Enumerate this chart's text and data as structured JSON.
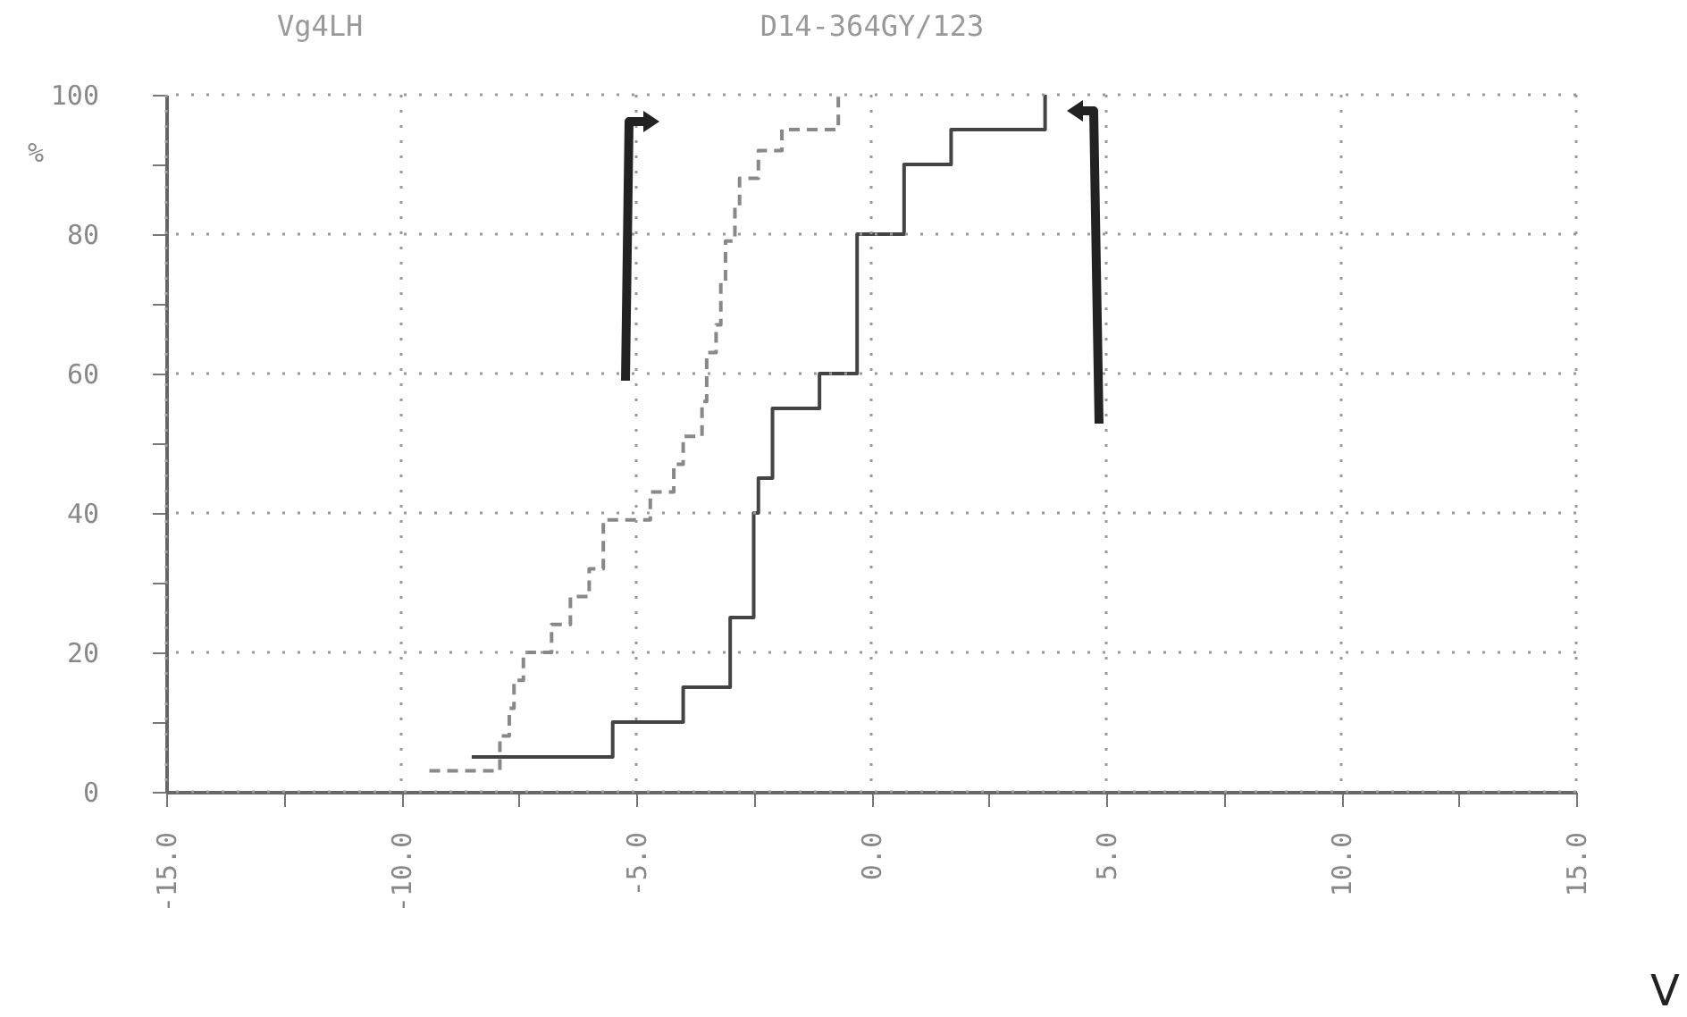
{
  "chart_data": {
    "type": "step",
    "title": "D14-364GY/123",
    "annotations": [
      "Vg4LH"
    ],
    "xlabel": "V",
    "ylabel": "%",
    "xlim": [
      -15,
      15
    ],
    "xticks": [
      {
        "value": -15,
        "label": "-15.0"
      },
      {
        "value": -12.5,
        "label": null
      },
      {
        "value": -10,
        "label": "-10.0"
      },
      {
        "value": -7.5,
        "label": null
      },
      {
        "value": -5,
        "label": "-5.0"
      },
      {
        "value": -2.5,
        "label": null
      },
      {
        "value": 0,
        "label": "0.0"
      },
      {
        "value": 2.5,
        "label": null
      },
      {
        "value": 5,
        "label": "5.0"
      },
      {
        "value": 7.5,
        "label": null
      },
      {
        "value": 10,
        "label": "10.0"
      },
      {
        "value": 12.5,
        "label": null
      },
      {
        "value": 15,
        "label": "15.0"
      }
    ],
    "ylim": [
      0,
      100
    ],
    "yticks": [
      0,
      {
        "value": 10,
        "label": null
      },
      20,
      {
        "value": 30,
        "label": null
      },
      40,
      {
        "value": 50,
        "label": null
      },
      60,
      {
        "value": 70,
        "label": null
      },
      80,
      {
        "value": 90,
        "label": null
      },
      100
    ],
    "grid": true,
    "series": [
      {
        "color": "#444444",
        "line_style": "solid",
        "x": [
          -8.5,
          -5.5,
          -4.0,
          -3.0,
          -2.5,
          -2.4,
          -2.1,
          -1.1,
          -0.3,
          0.7,
          1.7,
          3.7
        ],
        "values": [
          5,
          10,
          15,
          25,
          40,
          45,
          55,
          60,
          80,
          90,
          95,
          100
        ]
      },
      {
        "color": "#888888",
        "line_style": "dashed",
        "x": [
          -9.4,
          -7.9,
          -7.7,
          -7.6,
          -7.4,
          -6.8,
          -6.4,
          -6.0,
          -5.7,
          -4.7,
          -4.2,
          -4.0,
          -3.6,
          -3.5,
          -3.3,
          -3.2,
          -3.1,
          -2.9,
          -2.8,
          -2.4,
          -1.9,
          -0.7
        ],
        "values": [
          3,
          8,
          12,
          16,
          20,
          24,
          28,
          32,
          39,
          43,
          47,
          51,
          56,
          63,
          67,
          73,
          79,
          84,
          88,
          92,
          95,
          100
        ]
      }
    ]
  }
}
